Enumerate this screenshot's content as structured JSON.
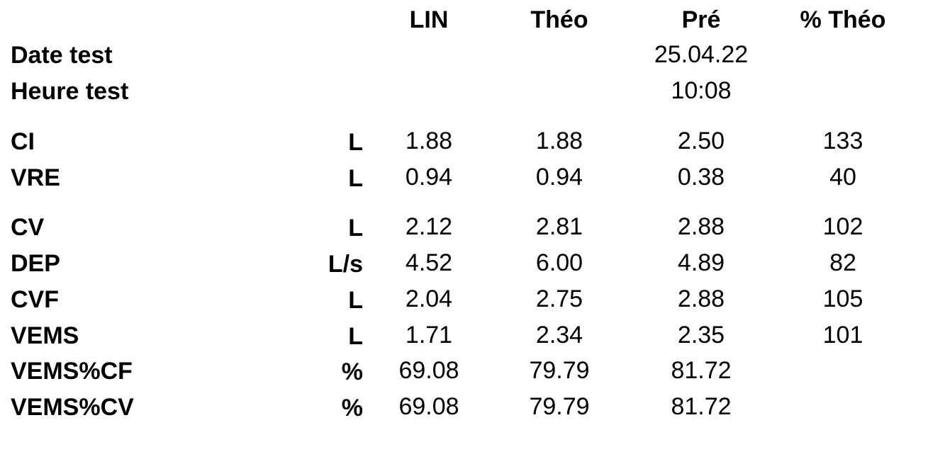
{
  "columns": [
    "LIN",
    "Théo",
    "Pré",
    "% Théo"
  ],
  "date_row": {
    "label": "Date test",
    "pre": "25.04.22"
  },
  "time_row": {
    "label": "Heure test",
    "pre": "10:08"
  },
  "rows": [
    {
      "label": "CI",
      "unit": "L",
      "lin": "1.88",
      "theo": "1.88",
      "pre": "2.50",
      "pct": "133"
    },
    {
      "label": "VRE",
      "unit": "L",
      "lin": "0.94",
      "theo": "0.94",
      "pre": "0.38",
      "pct": "40"
    },
    {
      "label": "CV",
      "unit": "L",
      "lin": "2.12",
      "theo": "2.81",
      "pre": "2.88",
      "pct": "102"
    },
    {
      "label": "DEP",
      "unit": "L/s",
      "lin": "4.52",
      "theo": "6.00",
      "pre": "4.89",
      "pct": "82"
    },
    {
      "label": "CVF",
      "unit": "L",
      "lin": "2.04",
      "theo": "2.75",
      "pre": "2.88",
      "pct": "105"
    },
    {
      "label": "VEMS",
      "unit": "L",
      "lin": "1.71",
      "theo": "2.34",
      "pre": "2.35",
      "pct": "101"
    },
    {
      "label": "VEMS%CF",
      "unit": "%",
      "lin": "69.08",
      "theo": "79.79",
      "pre": "81.72",
      "pct": ""
    },
    {
      "label": "VEMS%CV",
      "unit": "%",
      "lin": "69.08",
      "theo": "79.79",
      "pre": "81.72",
      "pct": ""
    }
  ]
}
